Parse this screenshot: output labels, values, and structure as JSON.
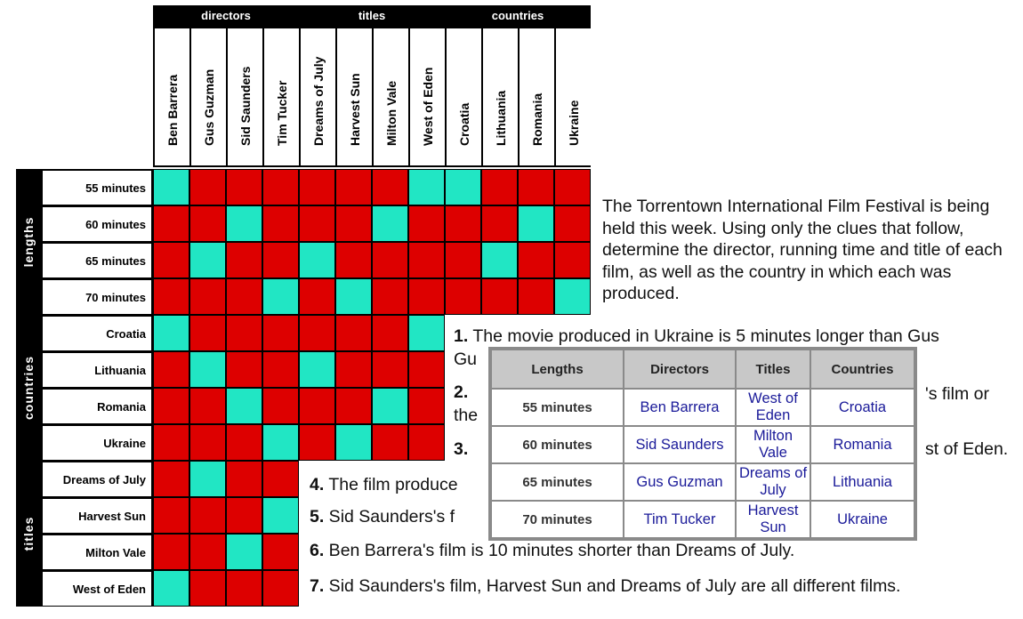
{
  "groups": {
    "directors": "directors",
    "titles": "titles",
    "countries": "countries",
    "lengths": "lengths",
    "countries_side": "countries",
    "titles_side": "titles"
  },
  "columns": [
    "Ben Barrera",
    "Gus Guzman",
    "Sid Saunders",
    "Tim Tucker",
    "Dreams of July",
    "Harvest Sun",
    "Milton Vale",
    "West of Eden",
    "Croatia",
    "Lithuania",
    "Romania",
    "Ukraine"
  ],
  "rows": {
    "lengths": [
      "55 minutes",
      "60 minutes",
      "65 minutes",
      "70 minutes"
    ],
    "countries": [
      "Croatia",
      "Lithuania",
      "Romania",
      "Ukraine"
    ],
    "titles": [
      "Dreams of July",
      "Harvest Sun",
      "Milton Vale",
      "West of Eden"
    ]
  },
  "colors": {
    "cross": "#dd0000",
    "check": "#21e6c4"
  },
  "grid": {
    "lengths": [
      "OXXXXXXOOXXX",
      "XXOXXXOXXXOX",
      "XOXXOXXXXOXX",
      "XXXOXOXXXXXO"
    ],
    "countries": [
      "OXXXXXXO",
      "XOXXOXXX",
      "XXOXXXOX",
      "XXXOXOXX"
    ],
    "titles": [
      "XOXX",
      "XXXO",
      "XXOX",
      "OXXX"
    ]
  },
  "intro": "The Torrentown International Film Festival is being held this week. Using only the clues that follow, determine the director, running time and title of each film, as well as the country in which each was produced.",
  "clues": [
    {
      "num": "1.",
      "text": " The movie produced in Ukraine is 5 minutes longer than Gus"
    },
    {
      "num": "",
      "text": "Gu"
    },
    {
      "num": "2.",
      "text": ""
    },
    {
      "num": "",
      "text": "the"
    },
    {
      "num": "3.",
      "text": ""
    },
    {
      "num": "4.",
      "text": " The film produce"
    },
    {
      "num": "5.",
      "text": " Sid Saunders's f"
    },
    {
      "num": "6.",
      "text": " Ben Barrera's film is 10 minutes shorter than Dreams of July."
    },
    {
      "num": "7.",
      "text": " Sid Saunders's film, Harvest Sun and Dreams of July are all different films."
    }
  ],
  "clue_fragments": {
    "clue2_tail": "'s film or",
    "clue3_tail": "st of Eden."
  },
  "solution": {
    "headers": [
      "Lengths",
      "Directors",
      "Titles",
      "Countries"
    ],
    "rows": [
      {
        "length": "55 minutes",
        "director": "Ben Barrera",
        "title": "West of Eden",
        "country": "Croatia"
      },
      {
        "length": "60 minutes",
        "director": "Sid Saunders",
        "title": "Milton Vale",
        "country": "Romania"
      },
      {
        "length": "65 minutes",
        "director": "Gus Guzman",
        "title": "Dreams of July",
        "country": "Lithuania"
      },
      {
        "length": "70 minutes",
        "director": "Tim Tucker",
        "title": "Harvest Sun",
        "country": "Ukraine"
      }
    ]
  }
}
